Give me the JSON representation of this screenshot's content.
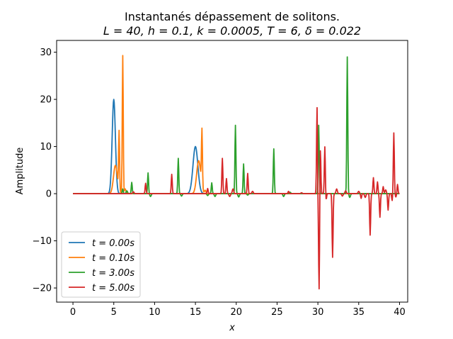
{
  "chart_data": {
    "type": "line",
    "title": "Instantanés dépassement de solitons.",
    "subtitle": "L = 40, h = 0.1, k = 0.0005, T = 6, δ = 0.022",
    "xlabel": "x",
    "ylabel": "Amplitude",
    "xlim": [
      -2,
      41
    ],
    "ylim": [
      -23,
      32.5
    ],
    "xticks": [
      0,
      5,
      10,
      15,
      20,
      25,
      30,
      35,
      40
    ],
    "yticks": [
      -20,
      -10,
      0,
      10,
      20,
      30
    ],
    "grid": false,
    "legend_position": "lower-left",
    "series": [
      {
        "name": "t = 0.00s",
        "color": "#1f77b4",
        "peaks": [
          [
            5.0,
            20.0,
            0.28
          ],
          [
            15.0,
            10.0,
            0.42
          ]
        ],
        "spikes": [],
        "noise": []
      },
      {
        "name": "t = 0.10s",
        "color": "#ff7f0e",
        "peaks": [
          [
            5.2,
            6.0,
            0.33
          ],
          [
            15.4,
            7.0,
            0.35
          ]
        ],
        "spikes": [
          [
            5.65,
            12.5
          ],
          [
            6.1,
            29.3
          ],
          [
            15.8,
            12.0
          ]
        ],
        "noise": [
          [
            6.4,
            1.0
          ],
          [
            16.2,
            0.7
          ]
        ]
      },
      {
        "name": "t = 3.00s",
        "color": "#2ca02c",
        "peaks": [],
        "spikes": [
          [
            6.1,
            1.0
          ],
          [
            7.2,
            2.4
          ],
          [
            9.2,
            4.4
          ],
          [
            12.9,
            7.5
          ],
          [
            17.0,
            2.3
          ],
          [
            19.9,
            14.5
          ],
          [
            20.9,
            6.3
          ],
          [
            24.6,
            9.5
          ],
          [
            30.1,
            14.5
          ],
          [
            33.6,
            29.0
          ]
        ],
        "noise": [
          [
            6.6,
            0.6
          ],
          [
            9.5,
            -0.6
          ],
          [
            13.3,
            -0.5
          ],
          [
            16.5,
            -0.4
          ],
          [
            17.4,
            -0.6
          ],
          [
            20.3,
            -0.7
          ],
          [
            21.4,
            -0.3
          ],
          [
            25.8,
            -0.6
          ],
          [
            26.6,
            0.3
          ],
          [
            33.9,
            -0.8
          ]
        ]
      },
      {
        "name": "t = 5.00s",
        "color": "#d62728",
        "peaks": [],
        "spikes": [
          [
            8.9,
            2.2
          ],
          [
            12.1,
            4.1
          ],
          [
            16.5,
            1.1
          ],
          [
            18.3,
            7.5
          ],
          [
            18.8,
            3.2
          ],
          [
            21.4,
            4.3
          ],
          [
            26.4,
            0.5
          ],
          [
            29.9,
            19.0
          ],
          [
            30.15,
            -20.5
          ],
          [
            30.3,
            10.0
          ],
          [
            30.85,
            10.0
          ],
          [
            31.8,
            -13.5
          ],
          [
            36.8,
            3.4
          ],
          [
            37.3,
            2.5
          ],
          [
            38.0,
            1.5
          ],
          [
            39.3,
            12.9
          ],
          [
            39.75,
            2.0
          ],
          [
            30.0,
            -3.0
          ],
          [
            31.0,
            -1.5
          ],
          [
            35.3,
            -1.0
          ],
          [
            36.4,
            -8.8
          ],
          [
            37.6,
            -5.0
          ],
          [
            38.6,
            -3.5
          ],
          [
            39.1,
            -1.5
          ]
        ],
        "noise": [
          [
            7.4,
            0.4
          ],
          [
            19.2,
            -0.6
          ],
          [
            19.6,
            1.0
          ],
          [
            22.0,
            0.5
          ],
          [
            28.0,
            0.2
          ],
          [
            32.3,
            1.0
          ],
          [
            33.0,
            -0.5
          ],
          [
            33.4,
            0.6
          ],
          [
            34.0,
            0.0
          ],
          [
            35.0,
            0.5
          ],
          [
            35.8,
            -0.8
          ],
          [
            38.3,
            0.8
          ],
          [
            39.55,
            -0.7
          ]
        ]
      }
    ]
  }
}
